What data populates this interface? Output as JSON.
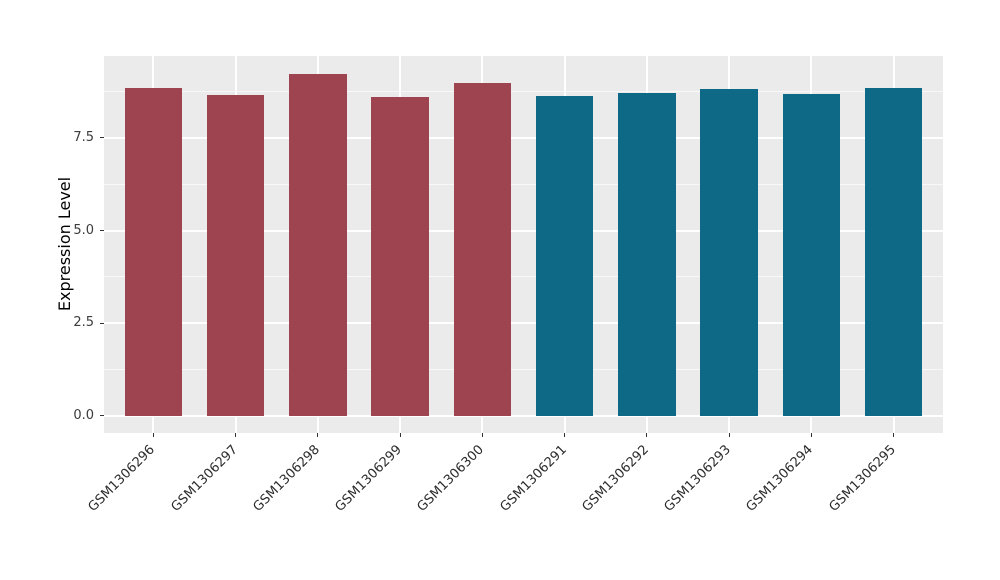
{
  "chart_data": {
    "type": "bar",
    "title": "",
    "xlabel": "",
    "ylabel": "Expression Level",
    "categories": [
      "GSM1306296",
      "GSM1306297",
      "GSM1306298",
      "GSM1306299",
      "GSM1306300",
      "GSM1306291",
      "GSM1306292",
      "GSM1306293",
      "GSM1306294",
      "GSM1306295"
    ],
    "values": [
      8.84,
      8.66,
      9.24,
      8.61,
      8.98,
      8.63,
      8.71,
      8.83,
      8.69,
      8.85
    ],
    "bar_colors": [
      "#9E4350",
      "#9E4350",
      "#9E4350",
      "#9E4350",
      "#9E4350",
      "#0E6987",
      "#0E6987",
      "#0E6987",
      "#0E6987",
      "#0E6987"
    ],
    "group_colors": {
      "left_group": "#9E4350",
      "right_group": "#0E6987"
    },
    "y_ticks": {
      "values": [
        0,
        2.5,
        5,
        7.5
      ],
      "labels": [
        "0.0",
        "2.5",
        "5.0",
        "7.5"
      ]
    },
    "y_minor_ticks": [
      1.25,
      3.75,
      6.25,
      8.75
    ],
    "ylim": [
      -0.4625,
      9.7125
    ],
    "grid": "on",
    "legend": "none",
    "panel_background": "#EBEBEB",
    "grid_color": "#FFFFFF"
  }
}
